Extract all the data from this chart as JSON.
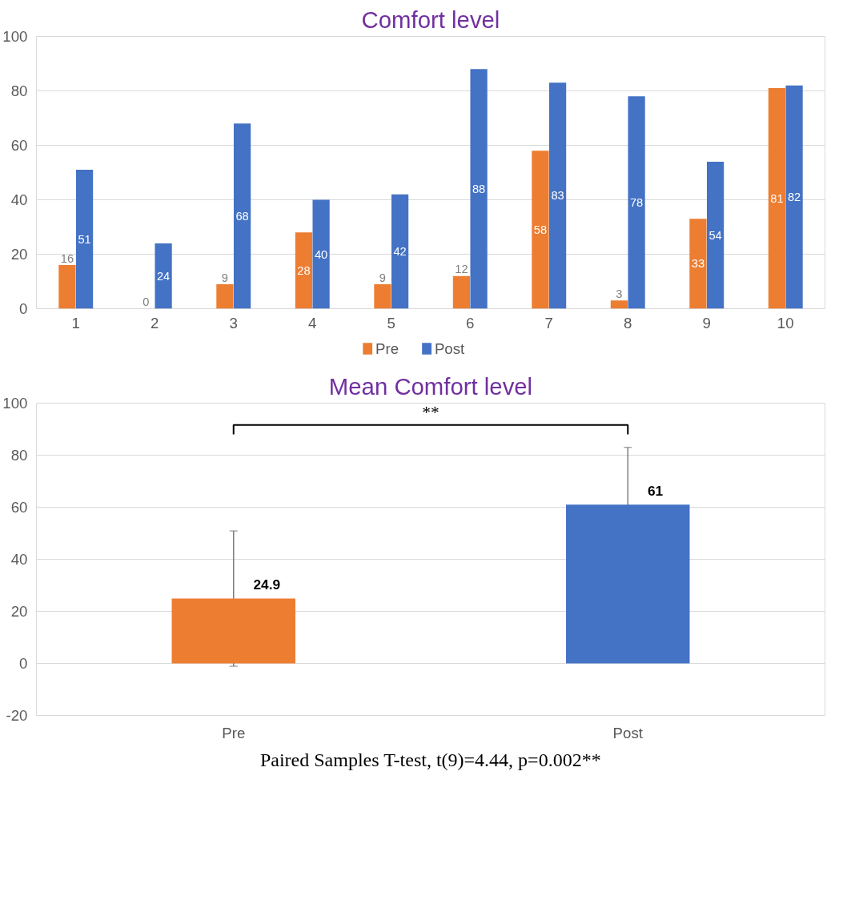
{
  "chart_data": [
    {
      "type": "bar",
      "title": "Comfort level",
      "categories": [
        "1",
        "2",
        "3",
        "4",
        "5",
        "6",
        "7",
        "8",
        "9",
        "10"
      ],
      "series": [
        {
          "name": "Pre",
          "color": "#ed7d31",
          "values": [
            16,
            0,
            9,
            28,
            9,
            12,
            58,
            3,
            33,
            81
          ]
        },
        {
          "name": "Post",
          "color": "#4472c4",
          "values": [
            51,
            24,
            68,
            40,
            42,
            88,
            83,
            78,
            54,
            82
          ]
        }
      ],
      "ylim": [
        0,
        100
      ],
      "yticks": [
        0,
        20,
        40,
        60,
        80,
        100
      ],
      "grid": "y",
      "legend": "bottom",
      "data_labels": true
    },
    {
      "type": "bar",
      "title": "Mean Comfort level",
      "categories": [
        "Pre",
        "Post"
      ],
      "values": [
        24.9,
        61
      ],
      "colors": [
        "#ed7d31",
        "#4472c4"
      ],
      "errors": [
        26,
        22
      ],
      "ylim": [
        -20,
        100
      ],
      "yticks": [
        -20,
        0,
        20,
        40,
        60,
        80,
        100
      ],
      "grid": "y",
      "data_labels": true,
      "annotations": [
        "**",
        "Paired Samples T-test, t(9)=4.44, p=0.002**"
      ]
    }
  ]
}
